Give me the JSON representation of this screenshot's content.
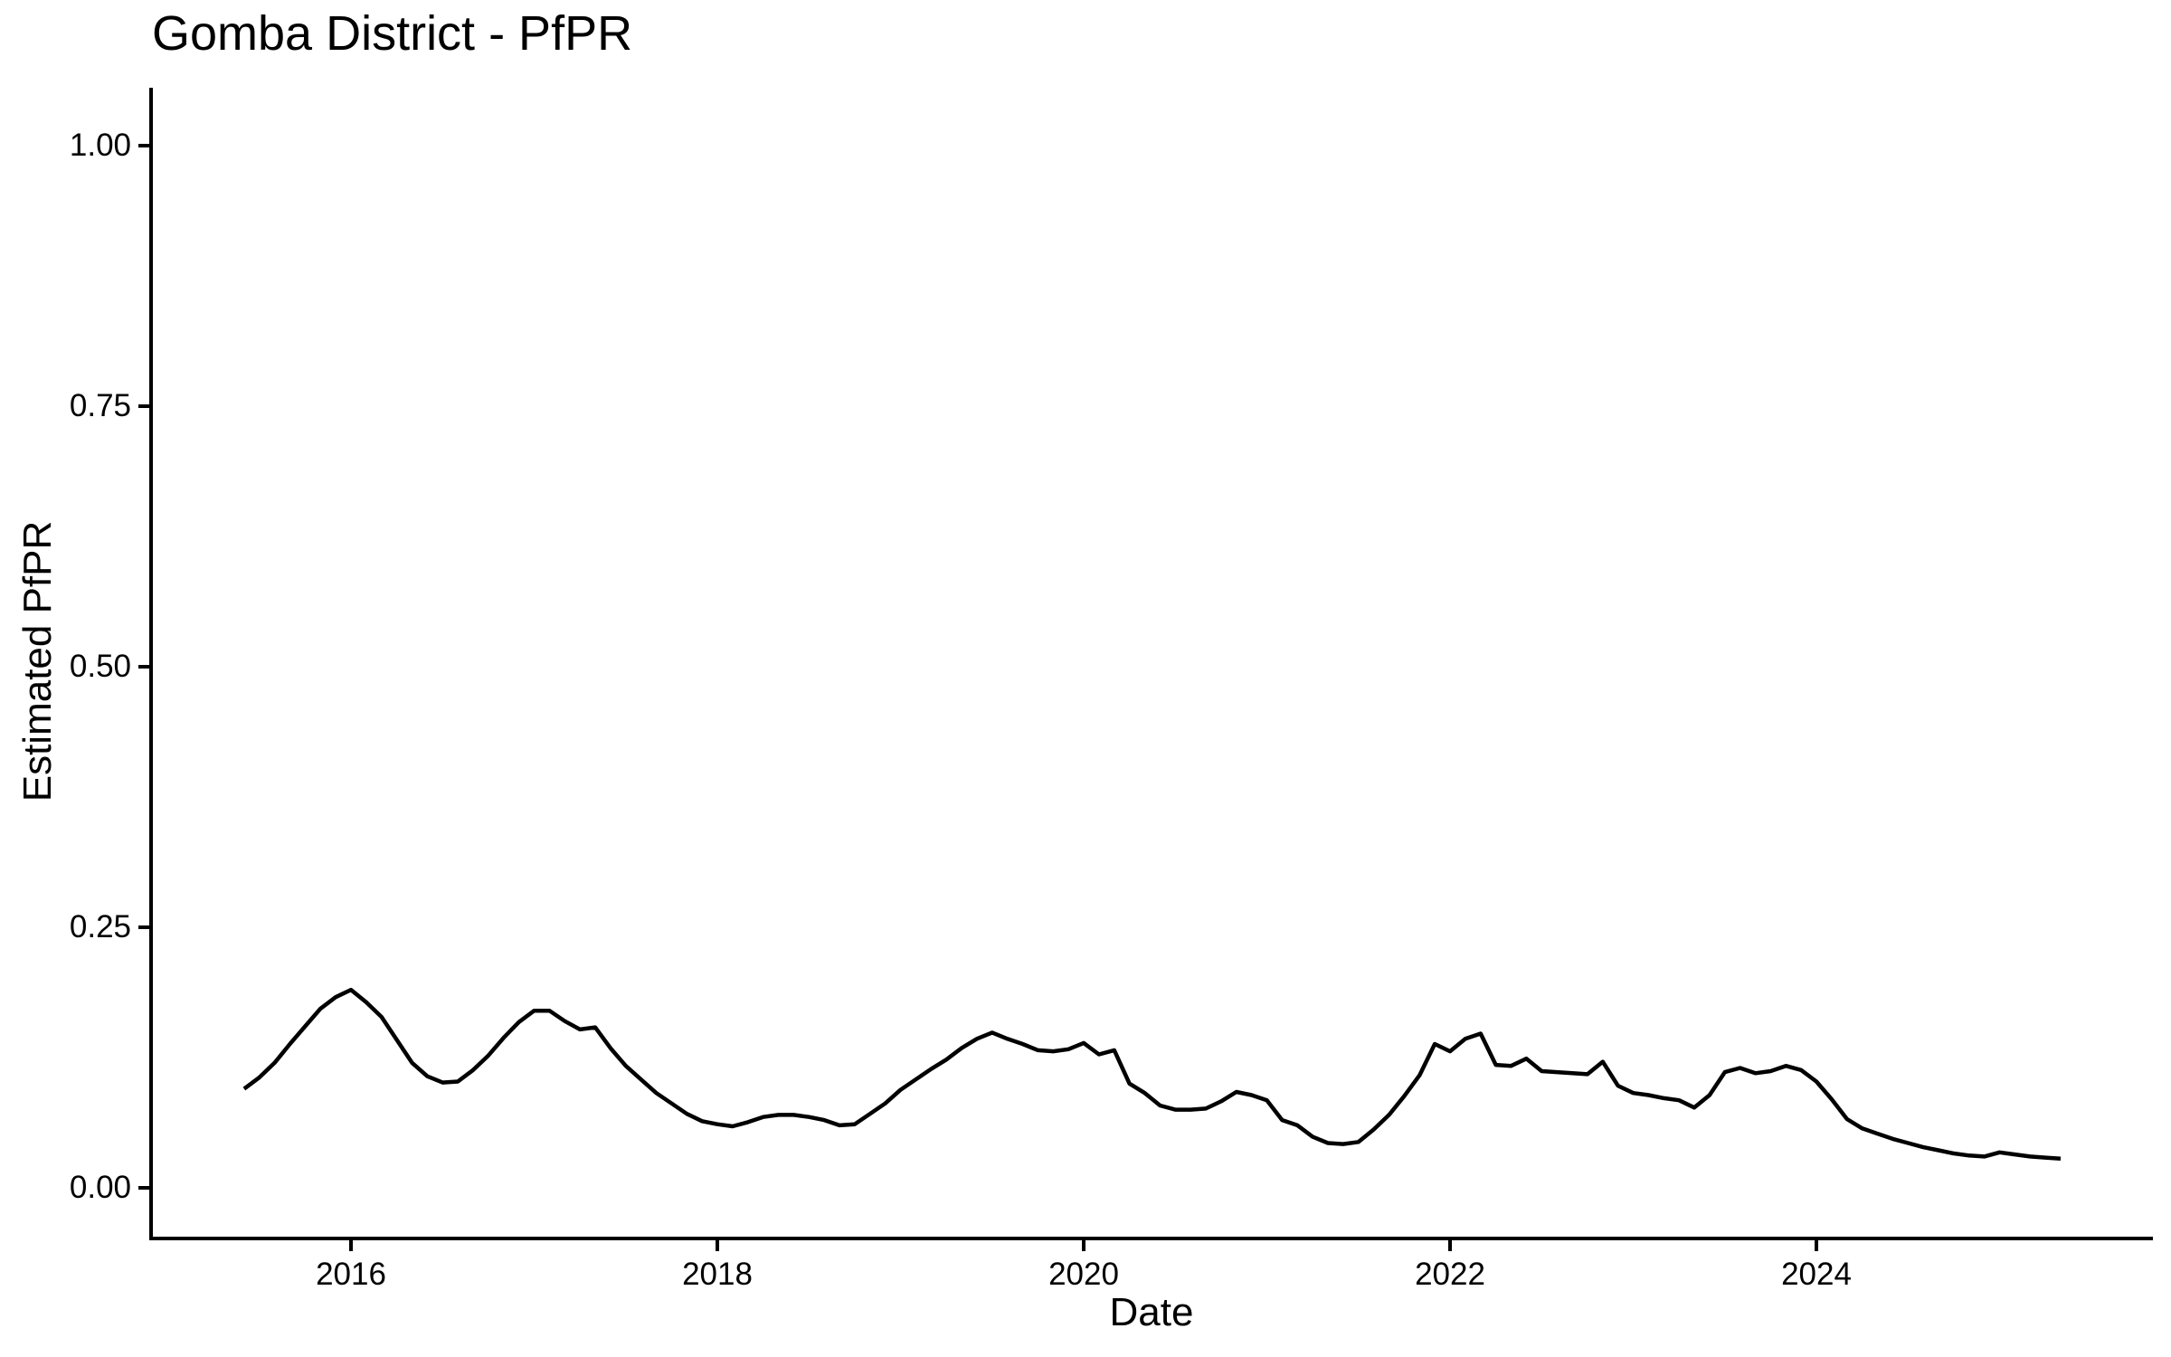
{
  "title": "Gomba District - PfPR",
  "x_axis": {
    "label": "Date",
    "tick_labels": [
      "2016",
      "2018",
      "2020",
      "2022",
      "2024"
    ]
  },
  "y_axis": {
    "label": "Estimated PfPR",
    "tick_labels": [
      "0.00",
      "0.25",
      "0.50",
      "0.75",
      "1.00"
    ]
  },
  "colors": {
    "line": "#000000",
    "axis": "#000000",
    "text": "#000000",
    "background": "#FFFFFF"
  },
  "chart_data": {
    "type": "line",
    "title": "Gomba District - PfPR",
    "xlabel": "Date",
    "ylabel": "Estimated PfPR",
    "ylim": [
      0.0,
      1.0
    ],
    "grid": false,
    "legend": false,
    "x_ticks_years": [
      2016,
      2018,
      2020,
      2022,
      2024
    ],
    "y_ticks": [
      {
        "value": 0.0,
        "label": "0.00"
      },
      {
        "value": 0.25,
        "label": "0.25"
      },
      {
        "value": 0.5,
        "label": "0.50"
      },
      {
        "value": 0.75,
        "label": "0.75"
      },
      {
        "value": 1.0,
        "label": "1.00"
      }
    ],
    "series": [
      {
        "name": "Estimated PfPR",
        "frequency": "monthly",
        "start_month": "2015-06",
        "end_month": "2025-05",
        "values": [
          0.095,
          0.106,
          0.12,
          0.138,
          0.155,
          0.172,
          0.183,
          0.19,
          0.178,
          0.164,
          0.142,
          0.12,
          0.107,
          0.101,
          0.102,
          0.113,
          0.127,
          0.144,
          0.159,
          0.17,
          0.17,
          0.16,
          0.152,
          0.154,
          0.134,
          0.117,
          0.104,
          0.091,
          0.081,
          0.071,
          0.064,
          0.061,
          0.059,
          0.063,
          0.068,
          0.07,
          0.07,
          0.068,
          0.065,
          0.06,
          0.061,
          0.071,
          0.081,
          0.094,
          0.104,
          0.114,
          0.123,
          0.134,
          0.143,
          0.149,
          0.143,
          0.138,
          0.132,
          0.131,
          0.133,
          0.139,
          0.128,
          0.132,
          0.1,
          0.091,
          0.079,
          0.075,
          0.075,
          0.076,
          0.083,
          0.092,
          0.089,
          0.084,
          0.065,
          0.06,
          0.049,
          0.043,
          0.042,
          0.044,
          0.056,
          0.07,
          0.088,
          0.108,
          0.138,
          0.131,
          0.143,
          0.148,
          0.118,
          0.117,
          0.124,
          0.112,
          0.111,
          0.11,
          0.109,
          0.121,
          0.098,
          0.091,
          0.089,
          0.086,
          0.084,
          0.077,
          0.089,
          0.111,
          0.115,
          0.11,
          0.112,
          0.117,
          0.113,
          0.102,
          0.085,
          0.066,
          0.057,
          0.052,
          0.047,
          0.043,
          0.039,
          0.036,
          0.033,
          0.031,
          0.03,
          0.034,
          0.032,
          0.03,
          0.029,
          0.028
        ]
      }
    ]
  }
}
